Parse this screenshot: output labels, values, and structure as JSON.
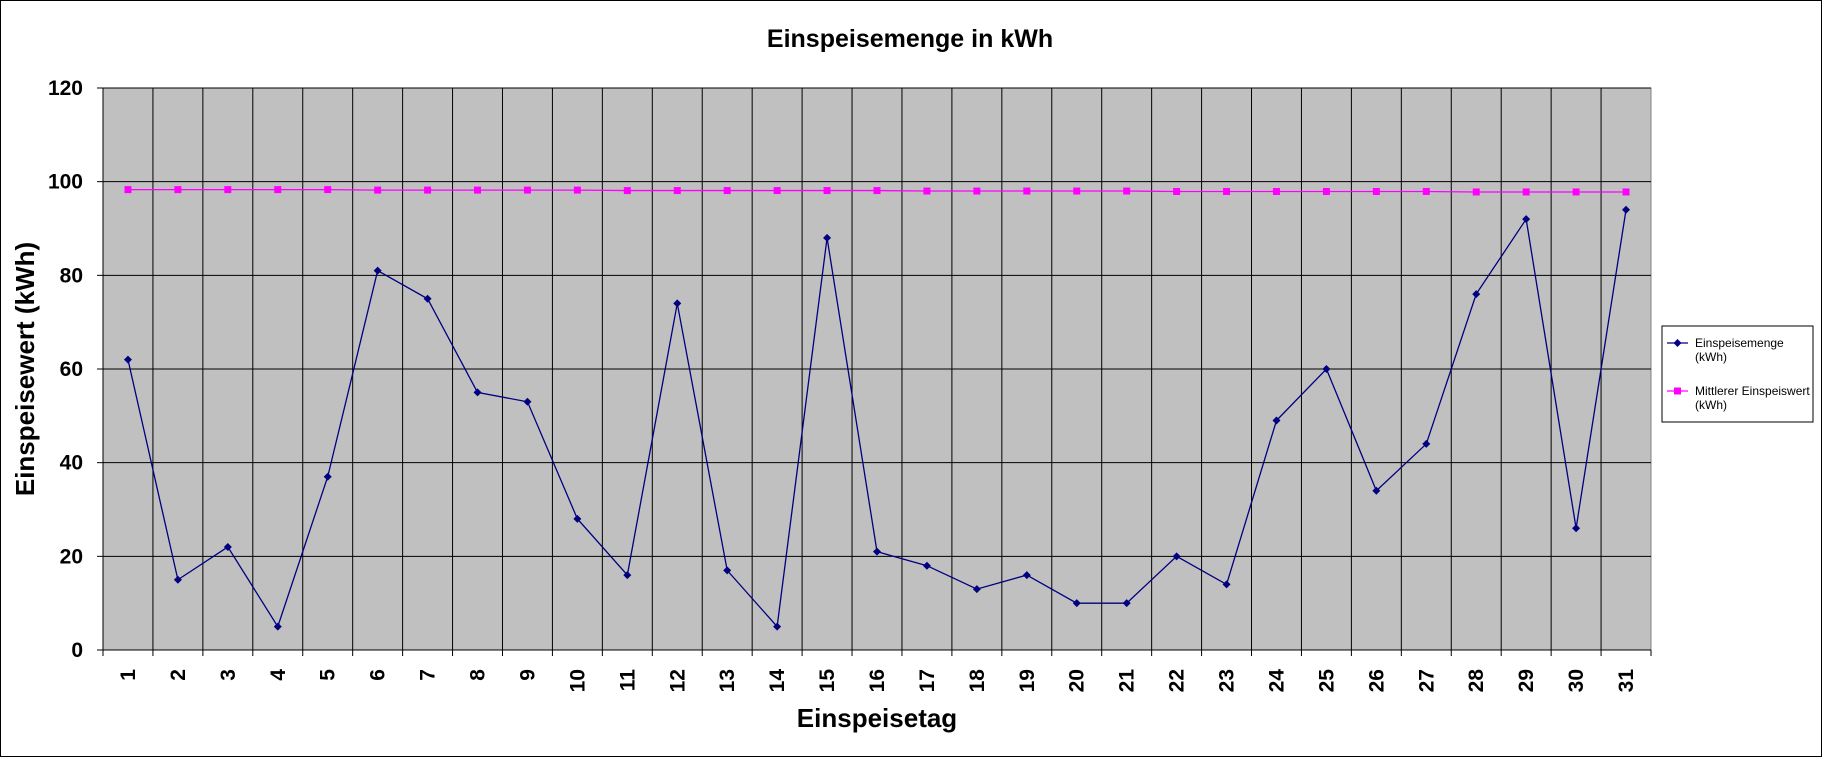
{
  "chart_data": {
    "type": "line",
    "title": "Einspeisemenge in kWh",
    "xlabel": "Einspeisetag",
    "ylabel": "Einspeisewert  (kWh)",
    "categories": [
      "1",
      "2",
      "3",
      "4",
      "5",
      "6",
      "7",
      "8",
      "9",
      "10",
      "11",
      "12",
      "13",
      "14",
      "15",
      "16",
      "17",
      "18",
      "19",
      "20",
      "21",
      "22",
      "23",
      "24",
      "25",
      "26",
      "27",
      "28",
      "29",
      "30",
      "31"
    ],
    "ylim": [
      0,
      120
    ],
    "yticks": [
      0,
      20,
      40,
      60,
      80,
      100,
      120
    ],
    "grid": true,
    "legend_position": "right",
    "plot_background": "#c0c0c0",
    "series": [
      {
        "name": "Einspeisemenge (kWh)",
        "name_lines": [
          "Einspeisemenge",
          "(kWh)"
        ],
        "color": "#000080",
        "marker": "diamond",
        "values": [
          62,
          15,
          22,
          5,
          37,
          81,
          75,
          55,
          53,
          28,
          16,
          74,
          17,
          5,
          88,
          21,
          18,
          13,
          16,
          10,
          10,
          20,
          14,
          49,
          60,
          34,
          44,
          76,
          92,
          26,
          94
        ]
      },
      {
        "name": "Mittlerer Einspeiswert (kWh)",
        "name_lines": [
          "Mittlerer Einspeiswert",
          "(kWh)"
        ],
        "color": "#ff00ff",
        "marker": "square",
        "values": [
          98.3,
          98.3,
          98.3,
          98.3,
          98.3,
          98.2,
          98.2,
          98.2,
          98.2,
          98.2,
          98.1,
          98.1,
          98.1,
          98.1,
          98.1,
          98.1,
          98.0,
          98.0,
          98.0,
          98.0,
          98.0,
          97.9,
          97.9,
          97.9,
          97.9,
          97.9,
          97.9,
          97.8,
          97.8,
          97.8,
          97.8
        ]
      }
    ]
  }
}
